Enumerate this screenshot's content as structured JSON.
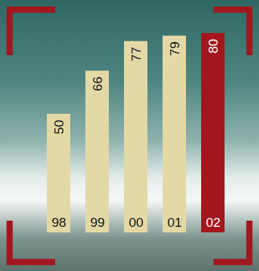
{
  "chart_data": {
    "type": "bar",
    "categories": [
      "98",
      "99",
      "00",
      "01",
      "02"
    ],
    "values": [
      50,
      66,
      77,
      79,
      80
    ],
    "colors": [
      "#e3d9a6",
      "#e3d9a6",
      "#e3d9a6",
      "#e3d9a6",
      "#a3161e"
    ],
    "ylim": [
      6,
      82
    ],
    "data_labels": true,
    "tick_labels": "x"
  }
}
